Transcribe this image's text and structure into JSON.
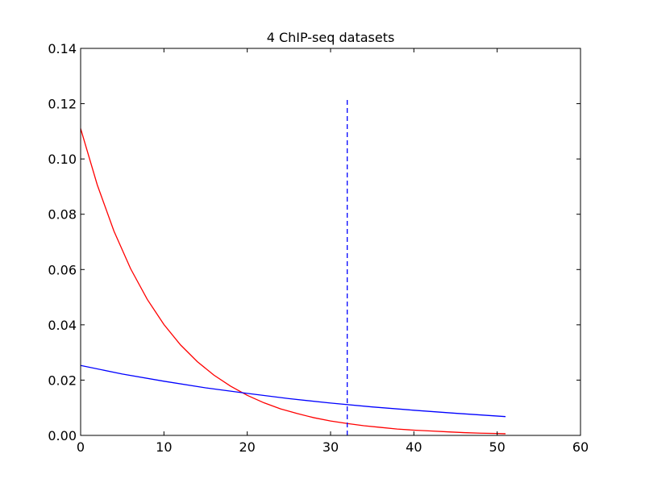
{
  "chart_data": {
    "type": "line",
    "title": "4 ChIP-seq datasets",
    "xlabel": "",
    "ylabel": "",
    "xlim": [
      0,
      60
    ],
    "ylim": [
      0,
      0.14
    ],
    "grid": false,
    "x_ticks": [
      0,
      10,
      20,
      30,
      40,
      50,
      60
    ],
    "x_tick_labels": [
      "0",
      "10",
      "20",
      "30",
      "40",
      "50",
      "60"
    ],
    "y_ticks": [
      0,
      0.02,
      0.04,
      0.06,
      0.08,
      0.1,
      0.12,
      0.14
    ],
    "y_tick_labels": [
      "0.00",
      "0.02",
      "0.04",
      "0.06",
      "0.08",
      "0.10",
      "0.12",
      "0.14"
    ],
    "series": [
      {
        "color": "#ff0000",
        "style": "solid",
        "x": [
          0,
          2,
          4,
          6,
          8,
          10,
          12,
          14,
          16,
          18,
          20,
          22,
          24,
          26,
          28,
          30,
          32,
          34,
          36,
          38,
          40,
          42,
          44,
          46,
          48,
          50,
          51
        ],
        "y": [
          0.111,
          0.0906,
          0.0739,
          0.0603,
          0.0492,
          0.0401,
          0.0327,
          0.0267,
          0.0218,
          0.0178,
          0.0145,
          0.0118,
          0.0096,
          0.0079,
          0.0064,
          0.0052,
          0.0043,
          0.0035,
          0.0029,
          0.0023,
          0.0019,
          0.0016,
          0.0013,
          0.001,
          0.0008,
          0.0007,
          0.0006
        ]
      },
      {
        "color": "#0000ff",
        "style": "solid",
        "x": [
          0,
          5,
          10,
          15,
          20,
          25,
          30,
          35,
          40,
          45,
          51
        ],
        "y": [
          0.0253,
          0.0222,
          0.0196,
          0.0172,
          0.0152,
          0.0133,
          0.0117,
          0.0103,
          0.0091,
          0.008,
          0.0068
        ]
      },
      {
        "color": "#0000ff",
        "style": "dashed",
        "x": [
          32,
          32
        ],
        "y": [
          0,
          0.122
        ]
      }
    ]
  }
}
